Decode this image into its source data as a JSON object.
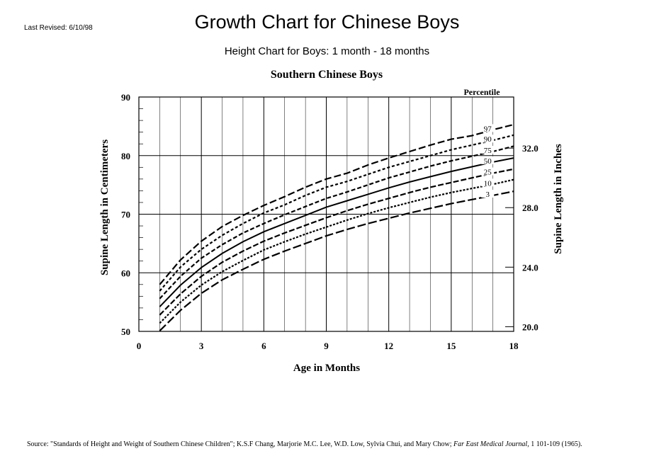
{
  "header": {
    "revised": "Last Revised: 6/10/98",
    "title": "Growth Chart for Chinese Boys",
    "subtitle": "Height Chart for Boys: 1 month - 18 months"
  },
  "source": {
    "prefix": "Source: \"Standards of Height and Weight of Southern Chinese Children\"; K.S.F Chang, Marjorie M.C. Lee, W.D. Low, Sylvia Chui, and Mary Chow; ",
    "journal": "Far East Medical Journal",
    "suffix": ", 1 101-109 (1965)."
  },
  "chart_data": {
    "type": "line",
    "title": "Southern Chinese Boys",
    "xlabel": "Age in Months",
    "ylabel": "Supine Length in Centimeters",
    "y2label": "Supine Length in Inches",
    "legend_title": "Percentile",
    "xlim": [
      0,
      18
    ],
    "ylim": [
      50,
      90
    ],
    "x_ticks": [
      0,
      3,
      6,
      9,
      12,
      15,
      18
    ],
    "y_ticks": [
      50,
      60,
      70,
      80,
      90
    ],
    "y2_ticks": [
      "20.0",
      "24.0",
      "28.0",
      "32.0"
    ],
    "y2_tick_cm": [
      50.8,
      60.96,
      71.12,
      81.28
    ],
    "grid": true,
    "x": [
      1,
      2,
      3,
      4,
      5,
      6,
      7,
      8,
      9,
      10,
      11,
      12,
      13,
      14,
      15,
      16,
      17,
      18
    ],
    "series": [
      {
        "name": "97",
        "values": [
          58.0,
          62.2,
          65.4,
          67.9,
          69.8,
          71.5,
          73.0,
          74.6,
          76.0,
          77.0,
          78.4,
          79.6,
          80.7,
          81.8,
          82.8,
          83.4,
          84.4,
          85.3
        ]
      },
      {
        "name": "90",
        "values": [
          56.9,
          61.0,
          64.0,
          66.4,
          68.4,
          70.2,
          71.6,
          73.2,
          74.6,
          75.6,
          76.8,
          78.0,
          79.0,
          80.0,
          81.0,
          81.8,
          82.6,
          83.5
        ]
      },
      {
        "name": "75",
        "values": [
          55.6,
          59.4,
          62.5,
          64.8,
          66.8,
          68.4,
          69.9,
          71.3,
          72.7,
          73.8,
          75.0,
          76.2,
          77.2,
          78.2,
          79.1,
          79.9,
          80.7,
          81.6
        ]
      },
      {
        "name": "50",
        "values": [
          54.2,
          57.9,
          60.9,
          63.3,
          65.3,
          67.0,
          68.4,
          69.8,
          71.2,
          72.3,
          73.4,
          74.5,
          75.5,
          76.4,
          77.3,
          78.1,
          78.9,
          79.6
        ]
      },
      {
        "name": "25",
        "values": [
          52.8,
          56.4,
          59.4,
          61.8,
          63.7,
          65.4,
          66.8,
          68.1,
          69.4,
          70.6,
          71.7,
          72.7,
          73.7,
          74.6,
          75.4,
          76.2,
          77.0,
          77.7
        ]
      },
      {
        "name": "10",
        "values": [
          51.4,
          55.0,
          57.9,
          60.2,
          62.1,
          63.9,
          65.3,
          66.6,
          67.8,
          69.0,
          70.1,
          71.1,
          72.0,
          72.9,
          73.7,
          74.4,
          75.1,
          75.9
        ]
      },
      {
        "name": "3",
        "values": [
          50.1,
          53.6,
          56.5,
          58.8,
          60.6,
          62.3,
          63.7,
          65.0,
          66.3,
          67.4,
          68.4,
          69.3,
          70.2,
          71.0,
          71.8,
          72.5,
          73.2,
          73.9
        ]
      }
    ]
  }
}
